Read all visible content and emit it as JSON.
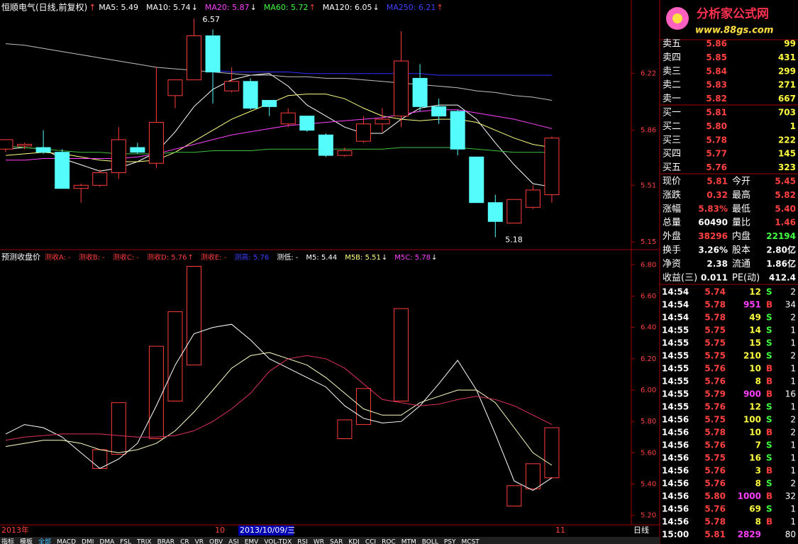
{
  "main_chart": {
    "type": "candlestick",
    "title": "恒顺电气(日线,前复权)",
    "title_arrow": "↑",
    "title_arrow_color": "#ff4040",
    "legend": [
      {
        "label": "MA5: 5.49",
        "color": "#ffffff"
      },
      {
        "label": "MA10: 5.74",
        "color": "#ffffff",
        "arrow": "↓",
        "arrow_color": "#ffffff"
      },
      {
        "label": "MA20: 5.87",
        "color": "#ff40ff",
        "arrow": "↓",
        "arrow_color": "#ffffff"
      },
      {
        "label": "MA60: 5.72",
        "color": "#40ff40",
        "arrow": "↑",
        "arrow_color": "#ff4040"
      },
      {
        "label": "MA120: 6.05",
        "color": "#ffffff",
        "arrow": "↓",
        "arrow_color": "#ffffff"
      },
      {
        "label": "MA250: 6.21",
        "color": "#4040ff",
        "arrow": "↑",
        "arrow_color": "#ff4040"
      }
    ],
    "open": [
      5.74,
      5.76,
      5.75,
      5.72,
      5.49,
      5.51,
      5.59,
      5.75,
      5.65,
      6.08,
      6.18,
      6.46,
      6.11,
      6.17,
      6.05,
      5.9,
      5.95,
      5.83,
      5.7,
      5.79,
      5.9,
      5.95,
      6.19,
      6.01,
      5.98,
      5.69,
      5.4,
      5.27,
      5.37,
      5.45
    ],
    "high": [
      5.8,
      5.78,
      5.86,
      5.74,
      5.52,
      5.61,
      5.88,
      5.78,
      6.26,
      6.18,
      6.57,
      6.5,
      6.26,
      6.19,
      6.05,
      6.0,
      5.95,
      5.84,
      5.75,
      5.95,
      6.0,
      6.49,
      6.28,
      6.06,
      5.99,
      5.69,
      5.45,
      5.42,
      5.51,
      5.82
    ],
    "low": [
      5.72,
      5.74,
      5.71,
      5.49,
      5.4,
      5.5,
      5.55,
      5.71,
      5.62,
      6.0,
      6.18,
      6.03,
      6.1,
      5.99,
      5.95,
      5.88,
      5.85,
      5.69,
      5.69,
      5.78,
      5.85,
      5.88,
      5.98,
      5.9,
      5.7,
      5.4,
      5.18,
      5.27,
      5.36,
      5.4
    ],
    "close": [
      5.8,
      5.77,
      5.72,
      5.49,
      5.51,
      5.59,
      5.8,
      5.72,
      5.91,
      6.18,
      6.46,
      6.23,
      6.17,
      6.0,
      6.01,
      5.97,
      5.86,
      5.7,
      5.73,
      5.9,
      5.93,
      6.3,
      6.01,
      5.95,
      5.74,
      5.4,
      5.28,
      5.42,
      5.48,
      5.81
    ],
    "up_color": "#ff3c3c",
    "down_color": "#54fcfc",
    "lines": [
      {
        "name": "MA5",
        "color": "#ffffff",
        "values": [
          5.74,
          5.75,
          5.74,
          5.68,
          5.64,
          5.6,
          5.62,
          5.66,
          5.72,
          5.85,
          6.01,
          6.12,
          6.18,
          6.21,
          6.22,
          6.14,
          6.02,
          5.95,
          5.88,
          5.84,
          5.84,
          5.93,
          6.0,
          6.02,
          6.02,
          5.93,
          5.78,
          5.64,
          5.52,
          5.5
        ]
      },
      {
        "name": "MA10",
        "color": "#ffff80",
        "values": [
          5.7,
          5.71,
          5.72,
          5.71,
          5.69,
          5.67,
          5.66,
          5.66,
          5.67,
          5.72,
          5.79,
          5.86,
          5.93,
          5.98,
          6.03,
          6.08,
          6.09,
          6.09,
          6.06,
          6.0,
          5.95,
          5.93,
          5.92,
          5.93,
          5.93,
          5.91,
          5.86,
          5.81,
          5.77,
          5.75
        ]
      },
      {
        "name": "MA20",
        "color": "#ff40ff",
        "values": [
          5.67,
          5.67,
          5.68,
          5.68,
          5.68,
          5.68,
          5.68,
          5.69,
          5.71,
          5.74,
          5.77,
          5.8,
          5.83,
          5.85,
          5.87,
          5.89,
          5.9,
          5.91,
          5.92,
          5.93,
          5.94,
          5.96,
          5.98,
          5.99,
          5.99,
          5.97,
          5.95,
          5.93,
          5.9,
          5.87
        ]
      },
      {
        "name": "MA60",
        "color": "#40c040",
        "values": [
          5.76,
          5.75,
          5.74,
          5.73,
          5.72,
          5.72,
          5.71,
          5.71,
          5.71,
          5.72,
          5.72,
          5.73,
          5.73,
          5.73,
          5.74,
          5.74,
          5.74,
          5.74,
          5.74,
          5.74,
          5.74,
          5.75,
          5.75,
          5.75,
          5.75,
          5.74,
          5.73,
          5.72,
          5.72,
          5.72
        ]
      },
      {
        "name": "MA120",
        "color": "#c0c0c0",
        "values": [
          6.41,
          6.4,
          6.38,
          6.36,
          6.34,
          6.32,
          6.3,
          6.28,
          6.26,
          6.25,
          6.24,
          6.23,
          6.22,
          6.21,
          6.21,
          6.2,
          6.2,
          6.19,
          6.19,
          6.18,
          6.17,
          6.16,
          6.15,
          6.14,
          6.13,
          6.11,
          6.1,
          6.08,
          6.07,
          6.05
        ]
      },
      {
        "name": "MA250",
        "color": "#3030ff",
        "values": [
          null,
          null,
          null,
          null,
          null,
          null,
          null,
          null,
          null,
          null,
          null,
          6.24,
          6.23,
          6.23,
          6.23,
          6.23,
          6.22,
          6.22,
          6.22,
          6.22,
          6.22,
          6.22,
          6.22,
          6.21,
          6.21,
          6.21,
          6.21,
          6.21,
          6.21,
          6.21
        ]
      }
    ],
    "high_label": 6.57,
    "low_label": 5.18,
    "ylim": [
      5.11,
      6.62
    ],
    "yticks": [
      5.15,
      5.51,
      5.86,
      6.22
    ]
  },
  "indicator_chart": {
    "type": "box-line",
    "title": "预测收盘价",
    "legend": [
      {
        "label": "测收A: -",
        "color": "#ff3c3c"
      },
      {
        "label": "测收B: -",
        "color": "#ff3c3c"
      },
      {
        "label": "测收C: -",
        "color": "#ff3c3c"
      },
      {
        "label": "测收D: 5.76",
        "color": "#ff3c3c",
        "arrow": "↑",
        "arrow_color": "#ff3c3c"
      },
      {
        "label": "测收E: -",
        "color": "#ff3c3c"
      },
      {
        "label": "测高: 5.76",
        "color": "#4040ff"
      },
      {
        "label": "测低: -",
        "color": "#ffffff"
      },
      {
        "label": "M5: 5.44",
        "color": "#ffffff"
      },
      {
        "label": "M5B: 5.51",
        "color": "#ffff80",
        "arrow": "↓",
        "arrow_color": "#ffffff"
      },
      {
        "label": "M5C: 5.78",
        "color": "#ff40ff",
        "arrow": "↓",
        "arrow_color": "#ffffff"
      }
    ],
    "box_top": [
      null,
      null,
      null,
      null,
      null,
      5.62,
      5.92,
      null,
      6.28,
      6.5,
      6.79,
      null,
      null,
      null,
      null,
      null,
      null,
      null,
      5.81,
      6.01,
      null,
      6.52,
      null,
      null,
      null,
      null,
      null,
      5.39,
      5.53,
      5.76
    ],
    "box_bottom": [
      null,
      null,
      null,
      null,
      null,
      5.5,
      5.59,
      null,
      5.69,
      5.93,
      6.16,
      null,
      null,
      null,
      null,
      null,
      null,
      null,
      5.69,
      5.78,
      null,
      5.93,
      null,
      null,
      null,
      null,
      null,
      5.26,
      5.37,
      5.44
    ],
    "box_color": "#ff3c3c",
    "lines": [
      {
        "name": "M5",
        "color": "#ffffff",
        "values": [
          5.72,
          5.78,
          5.76,
          5.7,
          5.6,
          5.5,
          5.56,
          5.66,
          5.9,
          6.16,
          6.36,
          6.4,
          6.42,
          6.32,
          6.2,
          6.14,
          6.08,
          6.02,
          5.9,
          5.82,
          5.79,
          5.8,
          5.9,
          6.04,
          6.19,
          6.0,
          5.72,
          5.42,
          5.36,
          5.44
        ]
      },
      {
        "name": "M5B",
        "color": "#ffffc0",
        "values": [
          5.64,
          5.66,
          5.68,
          5.68,
          5.66,
          5.62,
          5.6,
          5.62,
          5.66,
          5.74,
          5.86,
          6.0,
          6.14,
          6.22,
          6.24,
          6.2,
          6.16,
          6.08,
          5.98,
          5.88,
          5.84,
          5.84,
          5.92,
          5.96,
          6.0,
          6.0,
          5.92,
          5.76,
          5.6,
          5.52
        ]
      },
      {
        "name": "M5C",
        "color": "#e03060",
        "values": [
          5.68,
          5.7,
          5.71,
          5.72,
          5.72,
          5.72,
          5.71,
          5.7,
          5.7,
          5.71,
          5.74,
          5.8,
          5.88,
          5.98,
          6.12,
          6.2,
          6.22,
          6.2,
          6.14,
          6.04,
          5.94,
          5.92,
          5.9,
          5.91,
          5.94,
          5.96,
          5.94,
          5.9,
          5.84,
          5.78
        ]
      }
    ],
    "ylim": [
      5.14,
      6.86
    ],
    "yticks": [
      {
        "value": 5.2,
        "label": "5.20"
      },
      {
        "value": 5.4,
        "label": "5.40"
      },
      {
        "value": 5.6,
        "label": "5.60"
      },
      {
        "value": 5.8,
        "label": "5.80"
      },
      {
        "value": 6.0,
        "label": "6.00"
      },
      {
        "value": 6.2,
        "label": "6.20"
      },
      {
        "value": 6.4,
        "label": "6.40"
      },
      {
        "value": 6.6,
        "label": "6.60"
      },
      {
        "value": 6.8,
        "label": "6.80"
      }
    ]
  },
  "x_axis": {
    "start": "2013年",
    "month_mid": "10",
    "selected_date": "2013/10/09/三",
    "month_end": "11",
    "period": "日线"
  },
  "tabs": [
    "指标",
    "模板",
    "全部",
    "MACD",
    "DMI",
    "DMA",
    "FSL",
    "TRIX",
    "BRAR",
    "CR",
    "VR",
    "OBV",
    "ASI",
    "EMV",
    "VOL-TDX",
    "RSI",
    "WR",
    "SAR",
    "KDJ",
    "CCI",
    "ROC",
    "MTM",
    "BOLL",
    "PSY",
    "MCST"
  ],
  "logo": {
    "name": "分析家公式网",
    "url": "www.88gs.com"
  },
  "order_book": {
    "asks": [
      [
        "卖五",
        "5.86",
        "99"
      ],
      [
        "卖四",
        "5.85",
        "431"
      ],
      [
        "卖三",
        "5.84",
        "299"
      ],
      [
        "卖二",
        "5.83",
        "271"
      ],
      [
        "卖一",
        "5.82",
        "667"
      ]
    ],
    "bids": [
      [
        "买一",
        "5.81",
        "703"
      ],
      [
        "买二",
        "5.80",
        "1"
      ],
      [
        "买三",
        "5.78",
        "222"
      ],
      [
        "买四",
        "5.77",
        "145"
      ],
      [
        "买五",
        "5.76",
        "323"
      ]
    ]
  },
  "stats": [
    [
      "现价",
      "5.81",
      "今开",
      "5.45"
    ],
    [
      "涨跌",
      "0.32",
      "最高",
      "5.82"
    ],
    [
      "涨幅",
      "5.83%",
      "最低",
      "5.40"
    ],
    [
      "总量",
      "60490",
      "量比",
      "1.46"
    ],
    [
      "外盘",
      "38296",
      "内盘",
      "22194"
    ],
    [
      "换手",
      "3.26%",
      "股本",
      "2.80亿"
    ],
    [
      "净资",
      "2.38",
      "流通",
      "1.86亿"
    ],
    [
      "收益(三)",
      "0.011",
      "PE(动)",
      "412.4"
    ]
  ],
  "trades": [
    [
      "14:54",
      "5.74",
      "12",
      "S",
      "2"
    ],
    [
      "14:54",
      "5.78",
      "951",
      "B",
      "34"
    ],
    [
      "14:54",
      "5.78",
      "49",
      "S",
      "2"
    ],
    [
      "14:55",
      "5.75",
      "14",
      "S",
      "1"
    ],
    [
      "14:55",
      "5.75",
      "15",
      "S",
      "1"
    ],
    [
      "14:55",
      "5.75",
      "210",
      "S",
      "2"
    ],
    [
      "14:55",
      "5.76",
      "10",
      "B",
      "1"
    ],
    [
      "14:55",
      "5.76",
      "8",
      "B",
      "1"
    ],
    [
      "14:55",
      "5.79",
      "900",
      "B",
      "16"
    ],
    [
      "14:55",
      "5.76",
      "12",
      "S",
      "1"
    ],
    [
      "14:56",
      "5.75",
      "100",
      "S",
      "2"
    ],
    [
      "14:56",
      "5.78",
      "10",
      "B",
      "2"
    ],
    [
      "14:56",
      "5.76",
      "7",
      "S",
      "1"
    ],
    [
      "14:56",
      "5.75",
      "16",
      "S",
      "1"
    ],
    [
      "14:56",
      "5.76",
      "3",
      "B",
      "1"
    ],
    [
      "14:56",
      "5.76",
      "8",
      "S",
      "2"
    ],
    [
      "14:56",
      "5.80",
      "1000",
      "B",
      "32"
    ],
    [
      "14:56",
      "5.76",
      "69",
      "S",
      "1"
    ],
    [
      "14:56",
      "5.78",
      "8",
      "B",
      "1"
    ],
    [
      "15:00",
      "5.81",
      "2829",
      null,
      "80"
    ]
  ],
  "trade_big_volume_color": "#ff40ff",
  "trade_volume_color": "#ffff40",
  "buy_color": "#ff3c3c",
  "sell_color": "#40ff40"
}
